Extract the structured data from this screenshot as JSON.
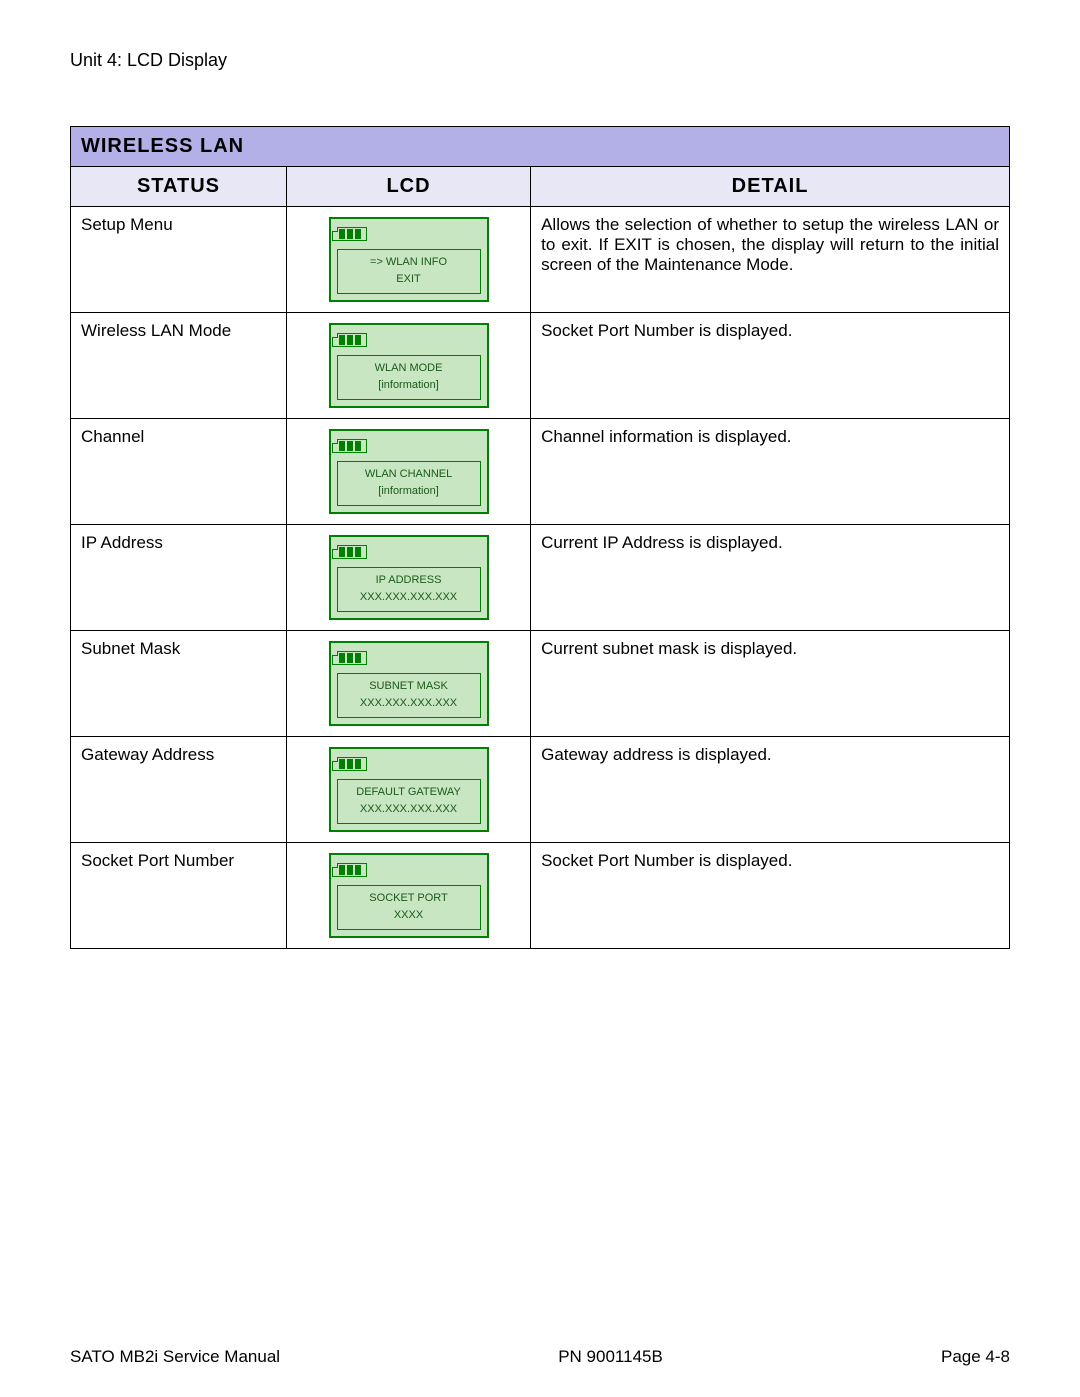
{
  "unit_title": "Unit 4: LCD Display",
  "section_title": "WIRELESS LAN",
  "columns": {
    "status": "STATUS",
    "lcd": "LCD",
    "detail": "DETAIL"
  },
  "col_widths": {
    "status": "23%",
    "lcd": "26%",
    "detail": "51%"
  },
  "colors": {
    "section_bg": "#b2b0e6",
    "header_bg": "#e8e7f6",
    "lcd_border": "#008000",
    "lcd_bg": "#c8e6c1",
    "lcd_text": "#1a5a1a"
  },
  "rows": [
    {
      "status": "Setup Menu",
      "lcd": {
        "line1": "=> WLAN INFO",
        "line2": "EXIT"
      },
      "detail": "Allows the selection of whether to setup the wireless LAN or to exit. If EXIT is chosen, the display will return to the initial screen of the Maintenance Mode.",
      "justify": true
    },
    {
      "status": "Wireless LAN Mode",
      "lcd": {
        "line1": "WLAN MODE",
        "line2": "[information]"
      },
      "detail": "Socket Port Number is displayed."
    },
    {
      "status": "Channel",
      "lcd": {
        "line1": "WLAN CHANNEL",
        "line2": "[information]"
      },
      "detail": "Channel information is displayed."
    },
    {
      "status": "IP Address",
      "lcd": {
        "line1": "IP ADDRESS",
        "line2": "XXX.XXX.XXX.XXX"
      },
      "detail": "Current IP Address is displayed."
    },
    {
      "status": "Subnet Mask",
      "lcd": {
        "line1": "SUBNET MASK",
        "line2": "XXX.XXX.XXX.XXX"
      },
      "detail": "Current subnet mask is displayed."
    },
    {
      "status": "Gateway Address",
      "lcd": {
        "line1": "DEFAULT GATEWAY",
        "line2": "XXX.XXX.XXX.XXX"
      },
      "detail": "Gateway address is displayed."
    },
    {
      "status": "Socket Port Number",
      "lcd": {
        "line1": "SOCKET PORT",
        "line2": "XXXX"
      },
      "detail": "Socket Port Number is displayed."
    }
  ],
  "footer": {
    "left": "SATO MB2i Service Manual",
    "center": "PN  9001145B",
    "right": "Page 4-8"
  }
}
